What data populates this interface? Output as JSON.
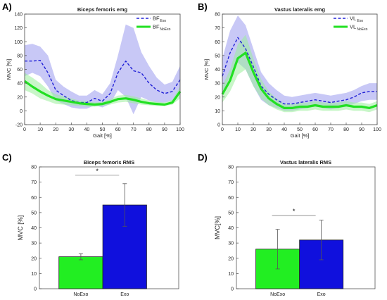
{
  "chart_data": [
    {
      "panel": "A)",
      "type": "line",
      "title": "Biceps femoris emg",
      "xlabel": "Gait [%]",
      "ylabel": "MVC [%]",
      "xlim": [
        0,
        100
      ],
      "ylim": [
        -20,
        140
      ],
      "xticks": [
        0,
        10,
        20,
        30,
        40,
        50,
        60,
        70,
        80,
        90,
        100
      ],
      "yticks": [
        -20,
        0,
        20,
        40,
        60,
        80,
        100,
        120,
        140
      ],
      "legend_position": "top-right",
      "series": [
        {
          "name": "BF",
          "subscript": "Exo",
          "color": "#1f1fd6",
          "style": "dashed",
          "band_color": "#9a9aef",
          "x": [
            0,
            5,
            10,
            15,
            20,
            25,
            30,
            35,
            40,
            45,
            50,
            55,
            60,
            65,
            70,
            75,
            80,
            85,
            90,
            95,
            100
          ],
          "y": [
            72,
            72,
            73,
            55,
            30,
            22,
            15,
            12,
            12,
            18,
            14,
            25,
            55,
            72,
            58,
            55,
            40,
            30,
            25,
            28,
            45
          ],
          "lower": [
            50,
            55,
            50,
            35,
            15,
            10,
            5,
            3,
            3,
            8,
            5,
            10,
            30,
            20,
            -5,
            20,
            15,
            12,
            12,
            15,
            25
          ],
          "upper": [
            95,
            97,
            93,
            80,
            45,
            35,
            28,
            22,
            22,
            30,
            24,
            40,
            80,
            125,
            120,
            85,
            65,
            48,
            38,
            42,
            65
          ]
        },
        {
          "name": "BF",
          "subscript": "NoExo",
          "color": "#22e022",
          "style": "solid",
          "band_color": "#9bef9b",
          "x": [
            0,
            5,
            10,
            15,
            20,
            25,
            30,
            35,
            40,
            45,
            50,
            55,
            60,
            65,
            70,
            75,
            80,
            85,
            90,
            95,
            100
          ],
          "y": [
            43,
            35,
            28,
            22,
            17,
            15,
            13,
            11,
            10,
            9,
            10,
            13,
            17,
            18,
            16,
            13,
            11,
            10,
            9,
            12,
            28
          ],
          "lower": [
            30,
            25,
            18,
            14,
            10,
            9,
            8,
            7,
            6,
            6,
            7,
            9,
            12,
            13,
            11,
            9,
            8,
            7,
            7,
            9,
            18
          ],
          "upper": [
            55,
            48,
            40,
            30,
            24,
            21,
            18,
            15,
            14,
            12,
            13,
            17,
            22,
            23,
            21,
            18,
            15,
            13,
            12,
            16,
            35
          ]
        }
      ]
    },
    {
      "panel": "B)",
      "type": "line",
      "title": "Vastus lateralis emg",
      "xlabel": "Gait [%]",
      "ylabel": "MVC [%]",
      "xlim": [
        0,
        100
      ],
      "ylim": [
        0,
        80
      ],
      "xticks": [
        0,
        10,
        20,
        30,
        40,
        50,
        60,
        70,
        80,
        90,
        100
      ],
      "yticks": [
        0,
        10,
        20,
        30,
        40,
        50,
        60,
        70,
        80
      ],
      "legend_position": "top-right",
      "series": [
        {
          "name": "VL",
          "subscript": "Exo",
          "color": "#1f1fd6",
          "style": "dashed",
          "band_color": "#9a9aef",
          "x": [
            0,
            5,
            10,
            15,
            20,
            25,
            30,
            35,
            40,
            45,
            50,
            55,
            60,
            65,
            70,
            75,
            80,
            85,
            90,
            95,
            100
          ],
          "y": [
            35,
            52,
            63,
            55,
            42,
            28,
            22,
            18,
            15,
            15,
            16,
            17,
            18,
            17,
            16,
            17,
            18,
            20,
            23,
            24,
            24
          ],
          "lower": [
            22,
            35,
            45,
            40,
            28,
            18,
            14,
            12,
            10,
            10,
            11,
            12,
            13,
            12,
            11,
            12,
            13,
            15,
            17,
            18,
            18
          ],
          "upper": [
            48,
            68,
            79,
            72,
            55,
            38,
            30,
            25,
            21,
            20,
            21,
            22,
            23,
            22,
            21,
            22,
            23,
            25,
            28,
            30,
            30
          ]
        },
        {
          "name": "VL",
          "subscript": "NoExo",
          "color": "#22e022",
          "style": "solid",
          "band_color": "#9bef9b",
          "x": [
            0,
            5,
            10,
            15,
            20,
            25,
            30,
            35,
            40,
            45,
            50,
            55,
            60,
            65,
            70,
            75,
            80,
            85,
            90,
            95,
            100
          ],
          "y": [
            22,
            32,
            48,
            52,
            38,
            26,
            19,
            15,
            12,
            12,
            13,
            13,
            14,
            13,
            13,
            13,
            14,
            13,
            13,
            12,
            14
          ],
          "lower": [
            16,
            24,
            36,
            40,
            28,
            19,
            14,
            11,
            9,
            9,
            10,
            10,
            11,
            10,
            10,
            10,
            11,
            10,
            10,
            9,
            11
          ],
          "upper": [
            28,
            40,
            58,
            65,
            48,
            33,
            24,
            19,
            15,
            15,
            16,
            16,
            17,
            16,
            16,
            16,
            17,
            16,
            16,
            15,
            17
          ]
        }
      ]
    },
    {
      "panel": "C)",
      "type": "bar",
      "title": "Biceps femoris RMS",
      "ylabel": "MVC [%]",
      "ylim": [
        0,
        80
      ],
      "yticks": [
        0,
        10,
        20,
        30,
        40,
        50,
        60,
        70,
        80
      ],
      "categories": [
        "NoExo",
        "Exo"
      ],
      "values": [
        21,
        55
      ],
      "errors": [
        2,
        14
      ],
      "colors": [
        "#22ee22",
        "#1010dd"
      ],
      "significance": "*"
    },
    {
      "panel": "D)",
      "type": "bar",
      "title": "Vastus lateralis RMS",
      "ylabel": "MVC[%]",
      "ylim": [
        0,
        80
      ],
      "yticks": [
        0,
        10,
        20,
        30,
        40,
        50,
        60,
        70,
        80
      ],
      "categories": [
        "NoExo",
        "Exo"
      ],
      "values": [
        26,
        32
      ],
      "errors": [
        13,
        13
      ],
      "colors": [
        "#22ee22",
        "#1010dd"
      ],
      "significance": "*"
    }
  ]
}
